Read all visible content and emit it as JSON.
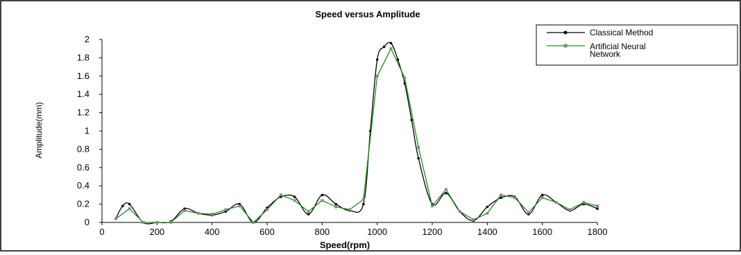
{
  "chart_data": {
    "type": "line",
    "title": "Speed versus Amplitude",
    "xlabel": "Speed(rpm)",
    "ylabel": "Amplitude(mm)",
    "xlim": [
      0,
      1800
    ],
    "ylim": [
      0,
      2
    ],
    "xticks": [
      0,
      200,
      400,
      600,
      800,
      1000,
      1200,
      1400,
      1600,
      1800
    ],
    "yticks": [
      0,
      0.2,
      0.4,
      0.6,
      0.8,
      1,
      1.2,
      1.4,
      1.6,
      1.8,
      2
    ],
    "legend_position": "top-right",
    "series": [
      {
        "name": "Classical Method",
        "color": "#000000",
        "marker": "circle",
        "smooth": true,
        "x": [
          50,
          75,
          100,
          150,
          200,
          250,
          300,
          350,
          400,
          450,
          500,
          550,
          600,
          650,
          700,
          750,
          800,
          850,
          900,
          950,
          975,
          1000,
          1025,
          1050,
          1075,
          1100,
          1125,
          1150,
          1200,
          1250,
          1300,
          1350,
          1400,
          1450,
          1500,
          1550,
          1600,
          1650,
          1700,
          1750,
          1800
        ],
        "y": [
          0.04,
          0.18,
          0.2,
          0.0,
          0.0,
          0.01,
          0.15,
          0.1,
          0.08,
          0.12,
          0.2,
          0.0,
          0.16,
          0.28,
          0.28,
          0.09,
          0.3,
          0.2,
          0.13,
          0.2,
          1.0,
          1.78,
          1.92,
          1.96,
          1.78,
          1.52,
          1.12,
          0.7,
          0.2,
          0.32,
          0.12,
          0.02,
          0.17,
          0.27,
          0.28,
          0.09,
          0.3,
          0.22,
          0.13,
          0.2,
          0.15
        ]
      },
      {
        "name": "Artificial Neural Network",
        "color": "#1e8c1e",
        "marker": "square",
        "smooth": false,
        "x": [
          50,
          100,
          150,
          200,
          250,
          300,
          350,
          400,
          450,
          500,
          550,
          600,
          650,
          700,
          750,
          800,
          850,
          900,
          950,
          1000,
          1050,
          1100,
          1150,
          1200,
          1250,
          1300,
          1350,
          1400,
          1450,
          1500,
          1550,
          1600,
          1650,
          1700,
          1750,
          1800
        ],
        "y": [
          0.04,
          0.15,
          0.0,
          0.0,
          0.0,
          0.13,
          0.1,
          0.09,
          0.14,
          0.18,
          0.0,
          0.14,
          0.3,
          0.24,
          0.12,
          0.24,
          0.17,
          0.14,
          0.25,
          1.6,
          1.9,
          1.58,
          0.82,
          0.18,
          0.36,
          0.12,
          0.03,
          0.1,
          0.3,
          0.27,
          0.11,
          0.27,
          0.22,
          0.14,
          0.22,
          0.18
        ]
      }
    ]
  }
}
